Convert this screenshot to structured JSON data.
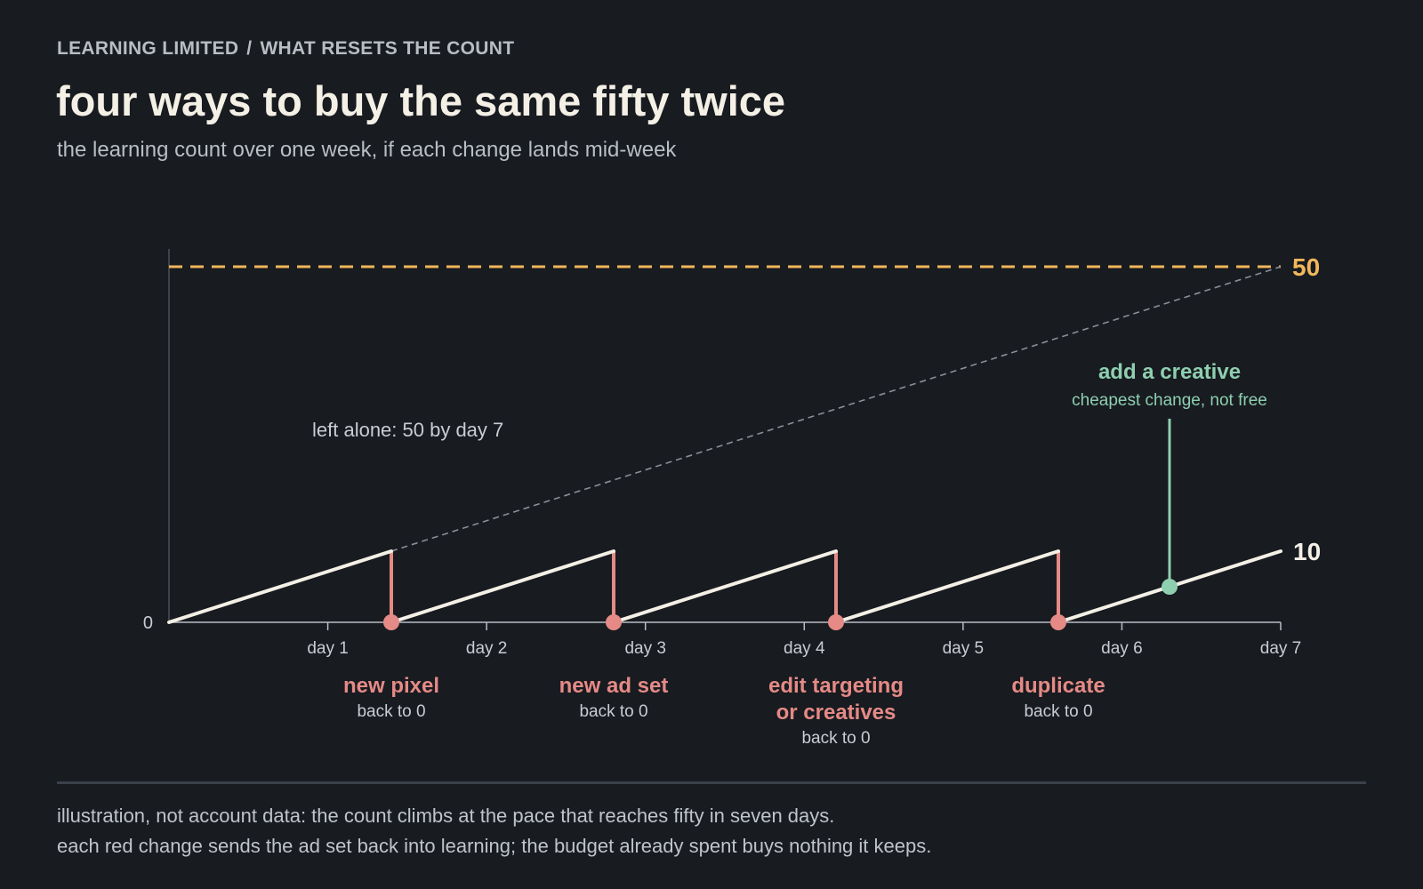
{
  "header": {
    "breadcrumb": [
      "LEARNING LIMITED",
      "WHAT RESETS THE COUNT"
    ],
    "breadcrumb_separator": "/",
    "title": "four ways to buy the same fifty twice",
    "subtitle": "the learning count over one week, if each change lands mid-week"
  },
  "chart_data": {
    "type": "line",
    "xlabel": "",
    "ylabel": "",
    "xlim": [
      0,
      7
    ],
    "ylim": [
      0,
      50
    ],
    "x_ticks": [
      "day 1",
      "day 2",
      "day 3",
      "day 4",
      "day 5",
      "day 6",
      "day 7"
    ],
    "y_tick_labels": [
      {
        "value": 0,
        "label": "0"
      }
    ],
    "threshold": {
      "value": 50,
      "label": "50",
      "color": "#f2b75b"
    },
    "series": [
      {
        "color": "#f4f0e6",
        "points": [
          [
            0,
            0
          ],
          [
            1.4,
            10
          ],
          [
            1.4,
            0
          ],
          [
            2.8,
            10
          ],
          [
            2.8,
            0
          ],
          [
            4.2,
            10
          ],
          [
            4.2,
            0
          ],
          [
            5.6,
            10
          ],
          [
            5.6,
            0
          ],
          [
            7,
            10
          ]
        ],
        "end_label": "10"
      },
      {
        "color": "#8a8f98",
        "style": "dashed",
        "points": [
          [
            1.4,
            10
          ],
          [
            7,
            50
          ]
        ],
        "annotation": "left alone: 50 by day 7"
      }
    ],
    "resets": [
      {
        "x": 1.4,
        "label": "new pixel",
        "sublabel": "back to 0"
      },
      {
        "x": 2.8,
        "label": "new ad set",
        "sublabel": "back to 0"
      },
      {
        "x": 4.2,
        "label": [
          "edit targeting",
          "or creatives"
        ],
        "sublabel": "back to 0"
      },
      {
        "x": 5.6,
        "label": "duplicate",
        "sublabel": "back to 0"
      }
    ],
    "soft_change": {
      "x": 6.3,
      "y": 5,
      "label": "add a creative",
      "sublabel": "cheapest change, not free"
    },
    "colors": {
      "background": "#181b20",
      "axis": "#b9bdc5",
      "reset": "#e58a86",
      "soft_change": "#8ecfb0",
      "threshold": "#f2b75b",
      "line": "#f4f0e6",
      "guide": "#8a8f98"
    }
  },
  "footer": {
    "notes": [
      "illustration, not account data: the count climbs at the pace that reaches fifty in seven days.",
      "each red change sends the ad set back into learning; the budget already spent buys nothing it keeps."
    ]
  }
}
